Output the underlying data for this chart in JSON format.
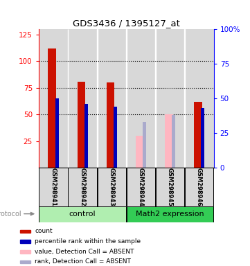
{
  "title": "GDS3436 / 1395127_at",
  "samples": [
    "GSM298941",
    "GSM298942",
    "GSM298943",
    "GSM298944",
    "GSM298945",
    "GSM298946"
  ],
  "red_values": [
    112,
    81,
    80,
    null,
    null,
    62
  ],
  "blue_values": [
    50,
    46,
    44,
    null,
    null,
    43
  ],
  "pink_values": [
    null,
    null,
    null,
    30,
    50,
    null
  ],
  "light_blue_values": [
    null,
    null,
    null,
    33,
    38,
    null
  ],
  "ylim_left": [
    0,
    130
  ],
  "ylim_right": [
    0,
    100
  ],
  "yticks_left": [
    25,
    50,
    75,
    100,
    125
  ],
  "yticks_right": [
    0,
    25,
    50,
    75,
    100
  ],
  "yticks_right_labels": [
    "0",
    "25",
    "50",
    "75",
    "100%"
  ],
  "red_color": "#CC1100",
  "blue_color": "#0000BB",
  "pink_color": "#FFB6C1",
  "light_blue_color": "#AAAACC",
  "bg_color": "#D8D8D8",
  "control_color": "#B0EEB0",
  "math2_color": "#33CC55",
  "legend_items": [
    {
      "label": "count",
      "color": "#CC1100"
    },
    {
      "label": "percentile rank within the sample",
      "color": "#0000BB"
    },
    {
      "label": "value, Detection Call = ABSENT",
      "color": "#FFB6C1"
    },
    {
      "label": "rank, Detection Call = ABSENT",
      "color": "#AAAACC"
    }
  ]
}
